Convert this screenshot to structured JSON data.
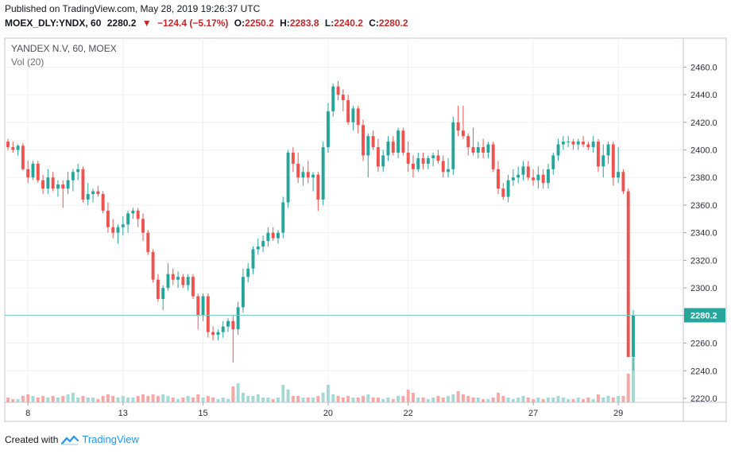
{
  "header": {
    "published": "Published on TradingView.com, May 28, 2019 19:26:37 UTC",
    "symbol": "MOEX_DLY:YNDX, 60",
    "last": "2280.2",
    "change_arrow": "▼",
    "change": "−124.4 (−5.17%)",
    "open_label": "O:",
    "open": "2250.2",
    "high_label": "H:",
    "high": "2283.8",
    "low_label": "L:",
    "low": "2240.2",
    "close_label": "C:",
    "close": "2280.2"
  },
  "footer": {
    "created_with": "Created with",
    "brand": "TradingView",
    "brand_icon": "tradingview-logo-icon"
  },
  "colors": {
    "up": "#26a69a",
    "down": "#ef5350",
    "vol_up": "#a6d9d4",
    "vol_down": "#f4a9a7",
    "price_line": "#7fcdc4",
    "price_tag": "#26a69a",
    "text_down": "#c62828"
  },
  "chart_data": {
    "type": "candlestick",
    "title": "YANDEX N.V, 60, MOEX",
    "indicator": "Vol (20)",
    "xlabel": "",
    "ylabel": "",
    "ylim": [
      2220,
      2470
    ],
    "yticks": [
      2220,
      2240,
      2260,
      2280,
      2300,
      2320,
      2340,
      2360,
      2380,
      2400,
      2420,
      2440,
      2460
    ],
    "ytick_labels": [
      "2220.0",
      "2240.0",
      "2260.0",
      "2280.0",
      "2300.0",
      "2320.0",
      "2340.0",
      "2360.0",
      "2380.0",
      "2400.0",
      "2420.0",
      "2440.0",
      "2460.0"
    ],
    "xticks": [
      {
        "label": "8",
        "index": 4
      },
      {
        "label": "13",
        "index": 23
      },
      {
        "label": "15",
        "index": 39
      },
      {
        "label": "20",
        "index": 64
      },
      {
        "label": "22",
        "index": 80
      },
      {
        "label": "27",
        "index": 105
      },
      {
        "label": "29",
        "index": 122
      }
    ],
    "last_price": 2280.2,
    "last_price_label": "2280.2",
    "grid": true,
    "candles": [
      [
        2406,
        2408,
        2400,
        2402,
        3
      ],
      [
        2402,
        2406,
        2398,
        2400,
        2
      ],
      [
        2400,
        2404,
        2396,
        2403,
        2
      ],
      [
        2403,
        2405,
        2385,
        2386,
        4
      ],
      [
        2386,
        2392,
        2376,
        2380,
        5
      ],
      [
        2380,
        2392,
        2378,
        2390,
        4
      ],
      [
        2390,
        2392,
        2376,
        2378,
        3
      ],
      [
        2378,
        2382,
        2368,
        2372,
        4
      ],
      [
        2372,
        2386,
        2368,
        2380,
        3
      ],
      [
        2380,
        2384,
        2370,
        2372,
        4
      ],
      [
        2372,
        2378,
        2366,
        2375,
        3
      ],
      [
        2375,
        2378,
        2358,
        2372,
        4
      ],
      [
        2372,
        2384,
        2368,
        2378,
        5
      ],
      [
        2378,
        2386,
        2370,
        2384,
        6
      ],
      [
        2384,
        2390,
        2378,
        2386,
        3
      ],
      [
        2386,
        2388,
        2362,
        2364,
        4
      ],
      [
        2364,
        2376,
        2360,
        2368,
        3
      ],
      [
        2368,
        2372,
        2362,
        2370,
        3
      ],
      [
        2370,
        2374,
        2366,
        2368,
        2
      ],
      [
        2368,
        2370,
        2354,
        2356,
        4
      ],
      [
        2356,
        2362,
        2340,
        2344,
        5
      ],
      [
        2344,
        2350,
        2336,
        2340,
        4
      ],
      [
        2340,
        2346,
        2332,
        2344,
        3
      ],
      [
        2344,
        2352,
        2338,
        2346,
        4
      ],
      [
        2346,
        2356,
        2340,
        2354,
        3
      ],
      [
        2354,
        2358,
        2350,
        2356,
        3
      ],
      [
        2356,
        2358,
        2344,
        2350,
        4
      ],
      [
        2350,
        2354,
        2334,
        2340,
        5
      ],
      [
        2340,
        2342,
        2324,
        2326,
        4
      ],
      [
        2326,
        2328,
        2304,
        2306,
        5
      ],
      [
        2306,
        2310,
        2290,
        2292,
        4
      ],
      [
        2292,
        2302,
        2284,
        2300,
        5
      ],
      [
        2300,
        2318,
        2298,
        2310,
        4
      ],
      [
        2310,
        2314,
        2302,
        2306,
        3
      ],
      [
        2306,
        2312,
        2300,
        2308,
        2
      ],
      [
        2308,
        2310,
        2300,
        2302,
        3
      ],
      [
        2302,
        2310,
        2298,
        2308,
        4
      ],
      [
        2308,
        2310,
        2292,
        2294,
        3
      ],
      [
        2294,
        2296,
        2270,
        2280,
        5
      ],
      [
        2280,
        2296,
        2276,
        2294,
        3
      ],
      [
        2294,
        2296,
        2264,
        2268,
        4
      ],
      [
        2268,
        2272,
        2262,
        2266,
        3
      ],
      [
        2266,
        2270,
        2262,
        2268,
        2
      ],
      [
        2268,
        2276,
        2264,
        2272,
        3
      ],
      [
        2272,
        2278,
        2268,
        2276,
        2
      ],
      [
        2276,
        2280,
        2246,
        2270,
        10
      ],
      [
        2270,
        2290,
        2266,
        2286,
        12
      ],
      [
        2286,
        2314,
        2282,
        2308,
        6
      ],
      [
        2308,
        2318,
        2304,
        2314,
        4
      ],
      [
        2314,
        2330,
        2310,
        2328,
        4
      ],
      [
        2328,
        2336,
        2324,
        2330,
        5
      ],
      [
        2330,
        2338,
        2326,
        2334,
        3
      ],
      [
        2334,
        2344,
        2330,
        2340,
        3
      ],
      [
        2340,
        2344,
        2334,
        2336,
        2
      ],
      [
        2336,
        2342,
        2332,
        2340,
        3
      ],
      [
        2340,
        2366,
        2336,
        2362,
        11
      ],
      [
        2362,
        2400,
        2358,
        2398,
        8
      ],
      [
        2398,
        2402,
        2384,
        2390,
        4
      ],
      [
        2390,
        2398,
        2376,
        2380,
        4
      ],
      [
        2380,
        2388,
        2374,
        2384,
        3
      ],
      [
        2384,
        2392,
        2376,
        2380,
        3
      ],
      [
        2380,
        2384,
        2370,
        2382,
        3
      ],
      [
        2382,
        2384,
        2356,
        2364,
        4
      ],
      [
        2364,
        2406,
        2360,
        2402,
        6
      ],
      [
        2402,
        2434,
        2398,
        2428,
        11
      ],
      [
        2428,
        2448,
        2424,
        2446,
        5
      ],
      [
        2446,
        2450,
        2436,
        2440,
        4
      ],
      [
        2440,
        2444,
        2428,
        2436,
        3
      ],
      [
        2436,
        2440,
        2418,
        2420,
        4
      ],
      [
        2420,
        2432,
        2414,
        2430,
        3
      ],
      [
        2430,
        2432,
        2412,
        2418,
        3
      ],
      [
        2418,
        2422,
        2392,
        2396,
        4
      ],
      [
        2396,
        2412,
        2380,
        2410,
        5
      ],
      [
        2410,
        2414,
        2400,
        2402,
        3
      ],
      [
        2402,
        2408,
        2384,
        2388,
        3
      ],
      [
        2388,
        2400,
        2384,
        2396,
        2
      ],
      [
        2396,
        2410,
        2392,
        2406,
        3
      ],
      [
        2406,
        2410,
        2396,
        2398,
        2
      ],
      [
        2398,
        2416,
        2394,
        2414,
        4
      ],
      [
        2414,
        2416,
        2396,
        2398,
        4
      ],
      [
        2398,
        2406,
        2384,
        2390,
        8
      ],
      [
        2390,
        2396,
        2380,
        2386,
        6
      ],
      [
        2386,
        2398,
        2384,
        2394,
        3
      ],
      [
        2394,
        2398,
        2386,
        2390,
        3
      ],
      [
        2390,
        2396,
        2386,
        2394,
        2
      ],
      [
        2394,
        2398,
        2388,
        2396,
        3
      ],
      [
        2396,
        2400,
        2390,
        2392,
        4
      ],
      [
        2392,
        2396,
        2380,
        2384,
        3
      ],
      [
        2384,
        2394,
        2380,
        2386,
        4
      ],
      [
        2386,
        2424,
        2382,
        2420,
        5
      ],
      [
        2420,
        2432,
        2410,
        2414,
        7
      ],
      [
        2414,
        2432,
        2408,
        2410,
        5
      ],
      [
        2410,
        2412,
        2396,
        2402,
        4
      ],
      [
        2402,
        2416,
        2396,
        2398,
        3
      ],
      [
        2398,
        2406,
        2394,
        2402,
        3
      ],
      [
        2402,
        2408,
        2394,
        2398,
        2
      ],
      [
        2398,
        2406,
        2394,
        2404,
        2
      ],
      [
        2404,
        2406,
        2384,
        2386,
        3
      ],
      [
        2386,
        2392,
        2368,
        2372,
        6
      ],
      [
        2372,
        2376,
        2364,
        2366,
        4
      ],
      [
        2366,
        2382,
        2362,
        2378,
        3
      ],
      [
        2378,
        2386,
        2374,
        2380,
        2
      ],
      [
        2380,
        2388,
        2376,
        2382,
        3
      ],
      [
        2382,
        2392,
        2378,
        2388,
        4
      ],
      [
        2388,
        2392,
        2378,
        2380,
        3
      ],
      [
        2380,
        2386,
        2374,
        2378,
        2
      ],
      [
        2378,
        2388,
        2372,
        2382,
        3
      ],
      [
        2382,
        2386,
        2372,
        2376,
        2
      ],
      [
        2376,
        2390,
        2372,
        2386,
        3
      ],
      [
        2386,
        2398,
        2382,
        2396,
        3
      ],
      [
        2396,
        2408,
        2392,
        2404,
        4
      ],
      [
        2404,
        2410,
        2400,
        2406,
        3
      ],
      [
        2406,
        2410,
        2402,
        2406,
        2
      ],
      [
        2406,
        2408,
        2400,
        2404,
        2
      ],
      [
        2404,
        2408,
        2400,
        2406,
        3
      ],
      [
        2406,
        2410,
        2402,
        2404,
        2
      ],
      [
        2404,
        2406,
        2400,
        2402,
        3
      ],
      [
        2402,
        2410,
        2398,
        2406,
        2
      ],
      [
        2406,
        2408,
        2384,
        2388,
        5
      ],
      [
        2388,
        2404,
        2380,
        2396,
        3
      ],
      [
        2396,
        2406,
        2390,
        2404,
        4
      ],
      [
        2404,
        2406,
        2374,
        2380,
        3
      ],
      [
        2380,
        2402,
        2376,
        2384,
        4
      ],
      [
        2384,
        2386,
        2368,
        2370,
        4
      ],
      [
        2370,
        2372,
        2250,
        2250,
        18
      ],
      [
        2250,
        2284,
        2240,
        2280,
        28
      ]
    ]
  }
}
